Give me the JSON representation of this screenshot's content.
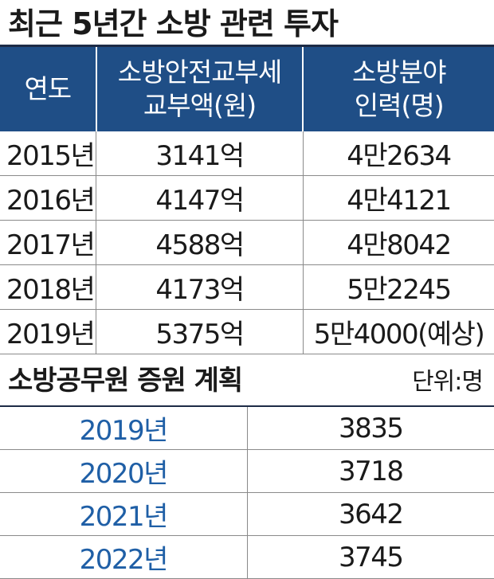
{
  "title": "최근 5년간 소방 관련 투자",
  "investment_table": {
    "headers": {
      "year": "연도",
      "grant_line1": "소방안전교부세",
      "grant_line2": "교부액(원)",
      "staff_line1": "소방분야",
      "staff_line2": "인력(명)"
    },
    "rows": [
      {
        "year": "2015년",
        "grant": "3141억",
        "staff": "4만2634"
      },
      {
        "year": "2016년",
        "grant": "4147억",
        "staff": "4만4121"
      },
      {
        "year": "2017년",
        "grant": "4588억",
        "staff": "4만8042"
      },
      {
        "year": "2018년",
        "grant": "4173억",
        "staff": "5만2245"
      },
      {
        "year": "2019년",
        "grant": "5375억",
        "staff": "5만4000(예상)"
      }
    ]
  },
  "plan_section": {
    "title": "소방공무원 증원 계획",
    "unit": "단위:명",
    "rows": [
      {
        "year": "2019년",
        "value": "3835"
      },
      {
        "year": "2020년",
        "value": "3718"
      },
      {
        "year": "2021년",
        "value": "3642"
      },
      {
        "year": "2022년",
        "value": "3745"
      }
    ]
  },
  "colors": {
    "header_bg": "#1f4e86",
    "year_text": "#1f5fa6",
    "rule": "#1d2b46"
  }
}
